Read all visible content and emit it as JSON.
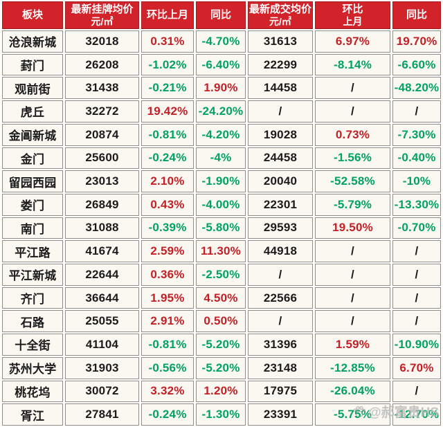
{
  "colors": {
    "header_bg": "#d2232b",
    "header_text": "#ffffff",
    "up_red": "#c22026",
    "down_green": "#00a261",
    "neutral": "#1b1b1b",
    "cell_bg": "#faf8f1",
    "border": "#8d8d8d",
    "page_bg": "#fffefb"
  },
  "table": {
    "columns": [
      {
        "l1": "板块",
        "l2": ""
      },
      {
        "l1": "最新挂牌均价",
        "l2": "元/㎡"
      },
      {
        "l1": "环比上月",
        "l2": ""
      },
      {
        "l1": "同比",
        "l2": ""
      },
      {
        "l1": "最新成交均价",
        "l2": "元/㎡"
      },
      {
        "l1": "环比",
        "l2": "上月"
      },
      {
        "l1": "同比",
        "l2": ""
      }
    ]
  },
  "chart_data": {
    "type": "table",
    "title": "",
    "columns": [
      "板块",
      "最新挂牌均价 元/㎡",
      "环比上月",
      "同比",
      "最新成交均价 元/㎡",
      "环比 上月",
      "同比"
    ],
    "rows": [
      [
        "沧浪新城",
        "32018",
        "0.31%",
        "-4.70%",
        "31613",
        "6.97%",
        "19.70%"
      ],
      [
        "葑门",
        "26208",
        "-1.02%",
        "-6.40%",
        "22299",
        "-8.14%",
        "-6.60%"
      ],
      [
        "观前街",
        "31438",
        "-0.21%",
        "1.90%",
        "14458",
        "/",
        "-48.20%"
      ],
      [
        "虎丘",
        "32272",
        "19.42%",
        "-24.20%",
        "/",
        "/",
        "/"
      ],
      [
        "金阊新城",
        "20874",
        "-0.81%",
        "-4.20%",
        "19028",
        "0.73%",
        "-7.30%"
      ],
      [
        "金门",
        "25600",
        "-0.24%",
        "-4%",
        "24458",
        "-1.56%",
        "-0.40%"
      ],
      [
        "留园西园",
        "23013",
        "2.10%",
        "-1.90%",
        "20040",
        "-52.58%",
        "-10%"
      ],
      [
        "娄门",
        "26849",
        "0.43%",
        "-4.00%",
        "22301",
        "-5.79%",
        "-13.30%"
      ],
      [
        "南门",
        "31088",
        "-0.39%",
        "-5.80%",
        "29593",
        "19.50%",
        "-0.70%"
      ],
      [
        "平江路",
        "41674",
        "2.59%",
        "11.30%",
        "44918",
        "/",
        "/"
      ],
      [
        "平江新城",
        "22644",
        "0.36%",
        "-2.50%",
        "/",
        "/",
        "/"
      ],
      [
        "齐门",
        "36644",
        "1.95%",
        "4.50%",
        "22566",
        "/",
        "/"
      ],
      [
        "石路",
        "25055",
        "2.91%",
        "0.50%",
        "/",
        "/",
        "/"
      ],
      [
        "十全街",
        "41104",
        "-0.81%",
        "-5.20%",
        "31396",
        "1.59%",
        "-10.90%"
      ],
      [
        "苏州大学",
        "31903",
        "-0.56%",
        "-5.20%",
        "23148",
        "-12.85%",
        "6.70%"
      ],
      [
        "桃花坞",
        "30072",
        "3.32%",
        "1.20%",
        "17975",
        "-26.04%",
        "/"
      ],
      [
        "胥江",
        "27841",
        "-0.24%",
        "-1.30%",
        "23391",
        "-5.75%",
        "-12.70%"
      ]
    ],
    "cell_colors": [
      [
        "black",
        "red",
        "green",
        "black",
        "red",
        "red"
      ],
      [
        "black",
        "green",
        "green",
        "black",
        "green",
        "green"
      ],
      [
        "black",
        "green",
        "red",
        "black",
        "black",
        "green"
      ],
      [
        "black",
        "red",
        "green",
        "black",
        "black",
        "black"
      ],
      [
        "black",
        "green",
        "green",
        "black",
        "red",
        "green"
      ],
      [
        "black",
        "green",
        "green",
        "black",
        "green",
        "green"
      ],
      [
        "black",
        "red",
        "green",
        "black",
        "green",
        "green"
      ],
      [
        "black",
        "red",
        "green",
        "black",
        "green",
        "green"
      ],
      [
        "black",
        "green",
        "green",
        "black",
        "red",
        "green"
      ],
      [
        "black",
        "red",
        "red",
        "black",
        "black",
        "black"
      ],
      [
        "black",
        "red",
        "green",
        "black",
        "black",
        "black"
      ],
      [
        "black",
        "red",
        "red",
        "black",
        "black",
        "black"
      ],
      [
        "black",
        "red",
        "red",
        "black",
        "black",
        "black"
      ],
      [
        "black",
        "green",
        "green",
        "black",
        "red",
        "green"
      ],
      [
        "black",
        "green",
        "green",
        "black",
        "green",
        "red"
      ],
      [
        "black",
        "red",
        "red",
        "black",
        "green",
        "black"
      ],
      [
        "black",
        "green",
        "green",
        "black",
        "green",
        "green"
      ]
    ]
  },
  "watermark": {
    "icon": "paw-icon",
    "text": "@郝富贵HS"
  }
}
